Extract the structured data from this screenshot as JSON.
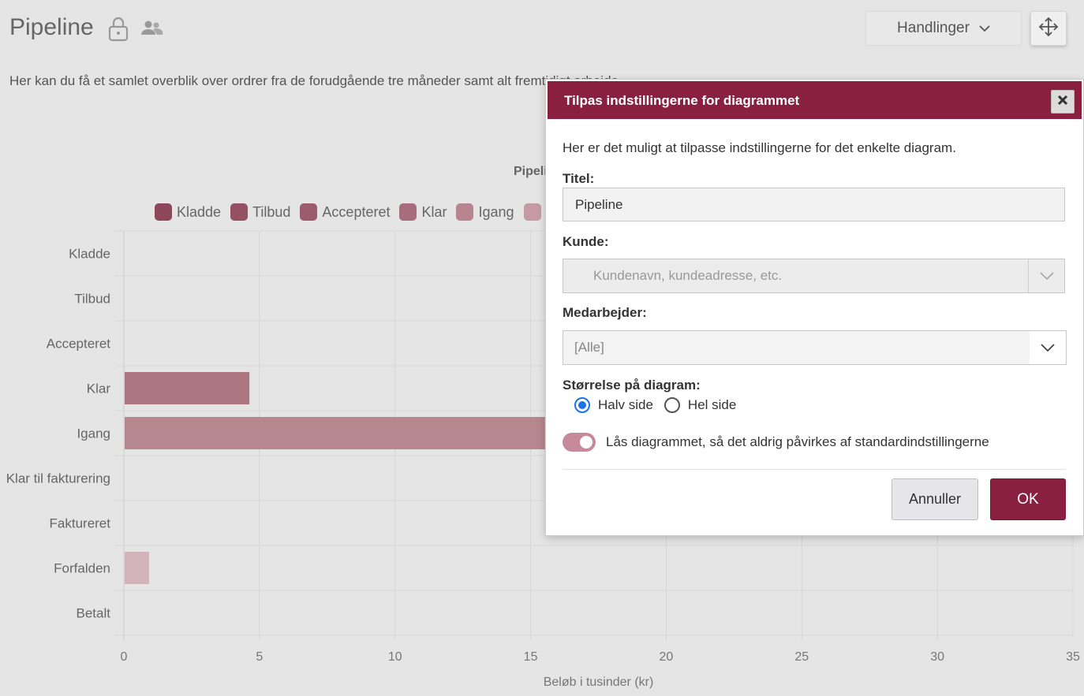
{
  "page": {
    "title": "Pipeline",
    "intro": "Her kan du få et samlet overblik over ordrer fra de forudgående tre måneder samt alt fremtidigt arbejde.",
    "actions_label": "Handlinger"
  },
  "chart": {
    "title_visible": "Pipeline",
    "legend": [
      {
        "label": "Kladde",
        "color": "#8e4759"
      },
      {
        "label": "Tilbud",
        "color": "#955062"
      },
      {
        "label": "Accepteret",
        "color": "#9d5c6d"
      },
      {
        "label": "Klar",
        "color": "#a86d7c"
      },
      {
        "label": "Igang",
        "color": "#b7848f"
      },
      {
        "label": "",
        "color": "#c69aa5"
      }
    ]
  },
  "chart_data": {
    "type": "bar",
    "orientation": "horizontal",
    "title": "Pipeline",
    "categories": [
      "Kladde",
      "Tilbud",
      "Accepteret",
      "Klar",
      "Igang",
      "Klar til fakturering",
      "Faktureret",
      "Forfalden",
      "Betalt"
    ],
    "values": [
      0,
      0,
      0,
      4.6,
      15.5,
      0,
      0,
      0.9,
      0
    ],
    "colors": [
      "#8e4759",
      "#955062",
      "#9d5c6d",
      "#ab7680",
      "#b7878f",
      "#c39ca4",
      "#c8a5ad",
      "#d0b4ba",
      "#d8c2c7"
    ],
    "xlabel": "Beløb i tusinder (kr)",
    "xticks": [
      "0",
      "5",
      "10",
      "15",
      "20",
      "25",
      "30",
      "35"
    ],
    "xlim": [
      0,
      35
    ],
    "grid": true,
    "legend_position": "top"
  },
  "modal": {
    "header": "Tilpas indstillingerne for diagrammet",
    "description": "Her er det muligt at tilpasse indstillingerne for det enkelte diagram.",
    "title_label": "Titel:",
    "title_value": "Pipeline",
    "customer_label": "Kunde:",
    "customer_placeholder": "Kundenavn, kundeadresse, etc.",
    "employee_label": "Medarbejder:",
    "employee_value": "[Alle]",
    "size_label": "Størrelse på diagram:",
    "size_options": [
      "Halv side",
      "Hel side"
    ],
    "size_selected": "Halv side",
    "lock_label": "Lås diagrammet, så det aldrig påvirkes af standardindstillingerne",
    "lock_enabled": true,
    "cancel_label": "Annuller",
    "ok_label": "OK"
  }
}
